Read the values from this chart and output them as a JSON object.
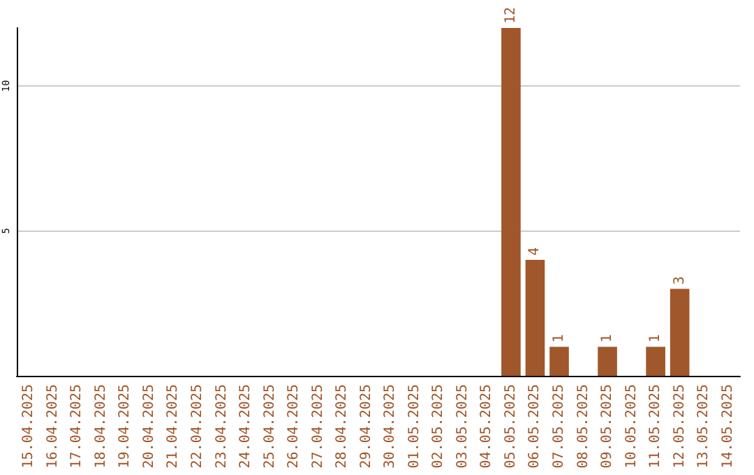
{
  "chart_data": {
    "type": "bar",
    "categories": [
      "15.04.2025",
      "16.04.2025",
      "17.04.2025",
      "18.04.2025",
      "19.04.2025",
      "20.04.2025",
      "21.04.2025",
      "22.04.2025",
      "23.04.2025",
      "24.04.2025",
      "25.04.2025",
      "26.04.2025",
      "27.04.2025",
      "28.04.2025",
      "29.04.2025",
      "30.04.2025",
      "01.05.2025",
      "02.05.2025",
      "03.05.2025",
      "04.05.2025",
      "05.05.2025",
      "06.05.2025",
      "07.05.2025",
      "08.05.2025",
      "09.05.2025",
      "10.05.2025",
      "11.05.2025",
      "12.05.2025",
      "13.05.2025",
      "14.05.2025"
    ],
    "values": [
      0,
      0,
      0,
      0,
      0,
      0,
      0,
      0,
      0,
      0,
      0,
      0,
      0,
      0,
      0,
      0,
      0,
      0,
      0,
      0,
      12,
      4,
      1,
      0,
      1,
      0,
      1,
      3,
      0,
      0
    ],
    "value_labels": [
      null,
      null,
      null,
      null,
      null,
      null,
      null,
      null,
      null,
      null,
      null,
      null,
      null,
      null,
      null,
      null,
      null,
      null,
      null,
      null,
      "12",
      "4",
      "1",
      null,
      "1",
      null,
      "1",
      "3",
      null,
      null
    ],
    "color": "#a0572b",
    "ylim": [
      0,
      12
    ],
    "yticks": [
      5,
      10
    ],
    "grid": "y"
  }
}
